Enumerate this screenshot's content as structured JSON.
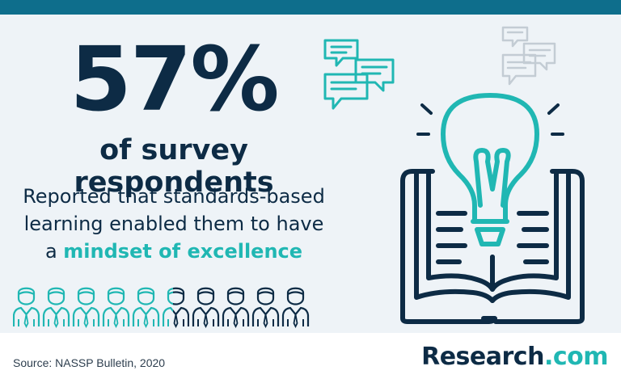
{
  "stat": {
    "value": "57%",
    "subtitle": "of survey respondents"
  },
  "description": {
    "line1": "Reported that standards-based",
    "line2": "learning enabled them to have",
    "line3_prefix": "a ",
    "line3_highlight": "mindset of excellence"
  },
  "people": {
    "total": 10,
    "highlighted_fraction": 0.57
  },
  "footer": {
    "source": "Source: NASSP Bulletin, 2020",
    "brand_name": "Research",
    "brand_suffix": ".com"
  },
  "colors": {
    "navy": "#0d2b45",
    "teal": "#20b7b3",
    "grey": "#c3ccd4",
    "topbar": "#0e6e8c"
  },
  "icons": [
    "chat-bubbles-teal-icon",
    "chat-bubbles-grey-icon",
    "lightbulb-book-icon",
    "person-icon"
  ]
}
